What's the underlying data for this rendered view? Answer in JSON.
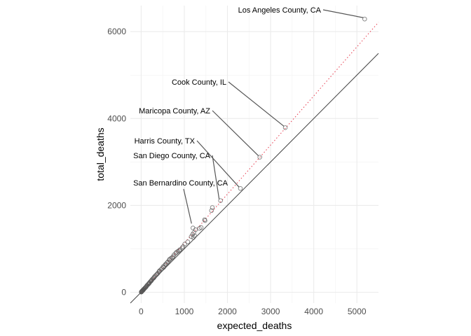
{
  "chart_data": {
    "type": "scatter",
    "title": "",
    "xlabel": "expected_deaths",
    "ylabel": "total_deaths",
    "xlim": [
      -250,
      5500
    ],
    "ylim": [
      -250,
      6600
    ],
    "x_ticks": [
      0,
      1000,
      2000,
      3000,
      4000,
      5000
    ],
    "y_ticks": [
      0,
      2000,
      4000,
      6000
    ],
    "grid": true,
    "reference_lines": [
      {
        "kind": "identity",
        "slope": 1,
        "intercept": 0,
        "style": "solid",
        "color": "#444444"
      },
      {
        "kind": "fit",
        "slope": 1.13,
        "intercept": 0,
        "style": "dotted",
        "color": "#e8495a"
      }
    ],
    "points": [
      {
        "x": 5180,
        "y": 6290
      },
      {
        "x": 3340,
        "y": 3790
      },
      {
        "x": 2750,
        "y": 3110
      },
      {
        "x": 2300,
        "y": 2390
      },
      {
        "x": 1840,
        "y": 2110
      },
      {
        "x": 1650,
        "y": 1950
      },
      {
        "x": 1630,
        "y": 1880
      },
      {
        "x": 1470,
        "y": 1670
      },
      {
        "x": 1480,
        "y": 1650
      },
      {
        "x": 1200,
        "y": 1480
      },
      {
        "x": 1260,
        "y": 1440
      },
      {
        "x": 1350,
        "y": 1470
      },
      {
        "x": 1390,
        "y": 1490
      },
      {
        "x": 1220,
        "y": 1370
      },
      {
        "x": 1190,
        "y": 1330
      },
      {
        "x": 1160,
        "y": 1280
      },
      {
        "x": 1210,
        "y": 1260
      },
      {
        "x": 1240,
        "y": 1300
      },
      {
        "x": 1080,
        "y": 1160
      },
      {
        "x": 1010,
        "y": 1110
      },
      {
        "x": 970,
        "y": 1050
      },
      {
        "x": 900,
        "y": 980
      },
      {
        "x": 880,
        "y": 960
      },
      {
        "x": 850,
        "y": 940
      },
      {
        "x": 800,
        "y": 900
      },
      {
        "x": 760,
        "y": 860
      },
      {
        "x": 720,
        "y": 800
      },
      {
        "x": 690,
        "y": 780
      },
      {
        "x": 650,
        "y": 740
      },
      {
        "x": 620,
        "y": 700
      },
      {
        "x": 600,
        "y": 680
      },
      {
        "x": 580,
        "y": 650
      },
      {
        "x": 540,
        "y": 610
      },
      {
        "x": 510,
        "y": 590
      },
      {
        "x": 480,
        "y": 550
      },
      {
        "x": 460,
        "y": 520
      },
      {
        "x": 430,
        "y": 500
      },
      {
        "x": 410,
        "y": 470
      },
      {
        "x": 390,
        "y": 440
      },
      {
        "x": 370,
        "y": 420
      },
      {
        "x": 350,
        "y": 400
      },
      {
        "x": 330,
        "y": 380
      },
      {
        "x": 310,
        "y": 360
      },
      {
        "x": 290,
        "y": 330
      },
      {
        "x": 270,
        "y": 310
      },
      {
        "x": 250,
        "y": 290
      },
      {
        "x": 240,
        "y": 270
      },
      {
        "x": 220,
        "y": 250
      },
      {
        "x": 200,
        "y": 230
      },
      {
        "x": 190,
        "y": 210
      },
      {
        "x": 170,
        "y": 190
      },
      {
        "x": 160,
        "y": 180
      },
      {
        "x": 140,
        "y": 160
      },
      {
        "x": 130,
        "y": 150
      },
      {
        "x": 120,
        "y": 130
      },
      {
        "x": 110,
        "y": 120
      },
      {
        "x": 100,
        "y": 110
      },
      {
        "x": 90,
        "y": 100
      },
      {
        "x": 80,
        "y": 90
      },
      {
        "x": 70,
        "y": 80
      },
      {
        "x": 60,
        "y": 70
      },
      {
        "x": 55,
        "y": 60
      },
      {
        "x": 50,
        "y": 55
      },
      {
        "x": 45,
        "y": 50
      },
      {
        "x": 40,
        "y": 45
      },
      {
        "x": 35,
        "y": 40
      },
      {
        "x": 30,
        "y": 35
      },
      {
        "x": 25,
        "y": 30
      },
      {
        "x": 20,
        "y": 25
      },
      {
        "x": 15,
        "y": 20
      },
      {
        "x": 10,
        "y": 15
      },
      {
        "x": 8,
        "y": 10
      },
      {
        "x": 5,
        "y": 6
      },
      {
        "x": 3,
        "y": 4
      },
      {
        "x": 560,
        "y": 640
      },
      {
        "x": 740,
        "y": 820
      },
      {
        "x": 820,
        "y": 920
      },
      {
        "x": 950,
        "y": 1020
      },
      {
        "x": 300,
        "y": 340
      },
      {
        "x": 420,
        "y": 480
      },
      {
        "x": 520,
        "y": 570
      },
      {
        "x": 660,
        "y": 760
      },
      {
        "x": 180,
        "y": 205
      },
      {
        "x": 230,
        "y": 260
      }
    ],
    "annotations": [
      {
        "label": "Los Angeles County, CA",
        "x": 5180,
        "y": 6290
      },
      {
        "label": "Cook County, IL",
        "x": 3340,
        "y": 3790
      },
      {
        "label": "Maricopa County, AZ",
        "x": 2750,
        "y": 3110
      },
      {
        "label": "Harris County, TX",
        "x": 2300,
        "y": 2390
      },
      {
        "label": "San Diego County, CA",
        "x": 1840,
        "y": 2110
      },
      {
        "label": "San Bernardino County, CA",
        "x": 1200,
        "y": 1550
      }
    ]
  }
}
